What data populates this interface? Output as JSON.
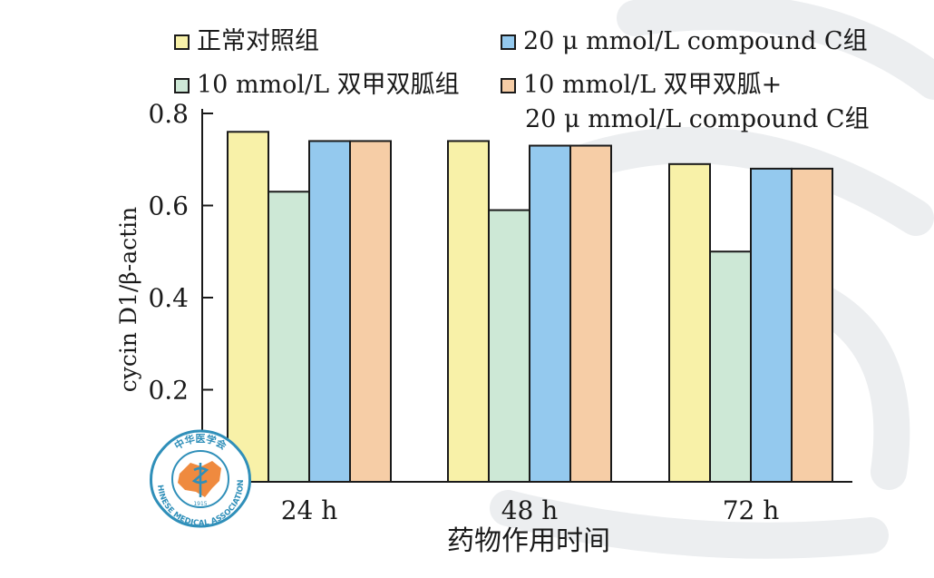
{
  "chart_data": {
    "type": "bar",
    "title": "",
    "xlabel": "药物作用时间",
    "ylabel": "cycin D1/β-actin",
    "categories": [
      "24 h",
      "48 h",
      "72 h"
    ],
    "ylim": [
      0,
      0.8
    ],
    "yticks": [
      "0",
      "0.2",
      "0.4",
      "0.6",
      "0.8"
    ],
    "ytick_values": [
      0,
      0.2,
      0.4,
      0.6,
      0.8
    ],
    "grid": false,
    "legend_position": "top",
    "series": [
      {
        "name": "正常对照组",
        "color": "#f8f1a8",
        "values": [
          0.76,
          0.74,
          0.69
        ]
      },
      {
        "name": "10 mmol/L 双甲双胍组",
        "color": "#cde8d6",
        "values": [
          0.63,
          0.59,
          0.5
        ]
      },
      {
        "name": "20 μ mmol/L compound C组",
        "color": "#94c9ee",
        "values": [
          0.74,
          0.73,
          0.68
        ]
      },
      {
        "name": "10 mmol/L 双甲双胍+",
        "name_line2": "20 μ mmol/L compound C组",
        "color": "#f6cda6",
        "values": [
          0.74,
          0.73,
          0.68
        ]
      }
    ]
  },
  "logo": {
    "text_top": "中华医学会",
    "text_bottom": "CHINESE MEDICAL ASSOCIATION",
    "year": "1915"
  }
}
